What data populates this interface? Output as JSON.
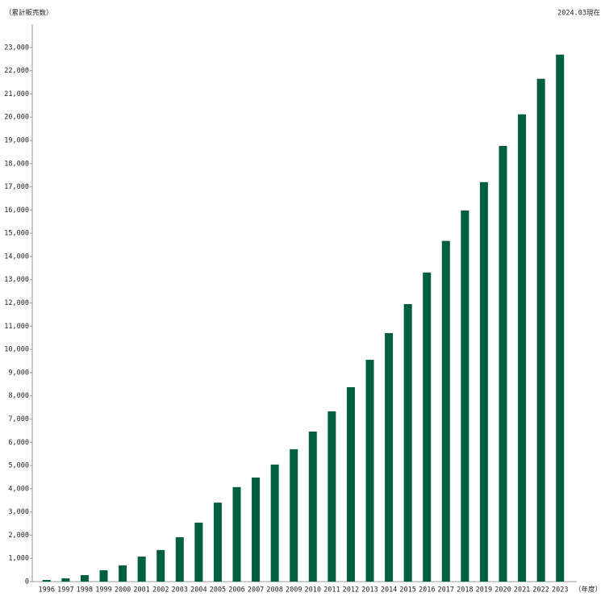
{
  "chart_data": {
    "type": "bar",
    "y_label": "（累計販売数）",
    "note": "2024.03現在",
    "x_label": "（年度）",
    "categories": [
      "1996",
      "1997",
      "1998",
      "1999",
      "2000",
      "2001",
      "2002",
      "2003",
      "2004",
      "2005",
      "2006",
      "2007",
      "2008",
      "2009",
      "2010",
      "2011",
      "2012",
      "2013",
      "2014",
      "2015",
      "2016",
      "2017",
      "2018",
      "2019",
      "2020",
      "2021",
      "2022",
      "2023"
    ],
    "values": [
      70,
      140,
      280,
      490,
      700,
      1080,
      1360,
      1910,
      2540,
      3400,
      4070,
      4480,
      5040,
      5700,
      6460,
      7330,
      8370,
      9550,
      10700,
      11950,
      13310,
      14670,
      15980,
      17200,
      18760,
      20120,
      21650,
      22690
    ],
    "color": "#005f3f",
    "ylim": [
      0,
      24000
    ],
    "yticks": [
      0,
      {
        "value": 1000,
        "label": "1,000"
      },
      {
        "value": 2000,
        "label": "2,000"
      },
      {
        "value": 3000,
        "label": "3,000"
      },
      {
        "value": 4000,
        "label": "4,000"
      },
      {
        "value": 5000,
        "label": "5,000"
      },
      {
        "value": 6000,
        "label": "6,000"
      },
      {
        "value": 7000,
        "label": "7,000"
      },
      {
        "value": 8000,
        "label": "8,000"
      },
      {
        "value": 9000,
        "label": "9,000"
      },
      {
        "value": 10000,
        "label": "10,000"
      },
      {
        "value": 11000,
        "label": "11,000"
      },
      {
        "value": 12000,
        "label": "12,000"
      },
      {
        "value": 13000,
        "label": "13,000"
      },
      {
        "value": 14000,
        "label": "14,000"
      },
      {
        "value": 15000,
        "label": "15,000"
      },
      {
        "value": 16000,
        "label": "16,000"
      },
      {
        "value": 17000,
        "label": "17,000"
      },
      {
        "value": 18000,
        "label": "18,000"
      },
      {
        "value": 19000,
        "label": "19,000"
      },
      {
        "value": 20000,
        "label": "20,000"
      },
      {
        "value": 21000,
        "label": "21,000"
      },
      {
        "value": 22000,
        "label": "22,000"
      },
      {
        "value": 23000,
        "label": "23,000"
      }
    ]
  }
}
